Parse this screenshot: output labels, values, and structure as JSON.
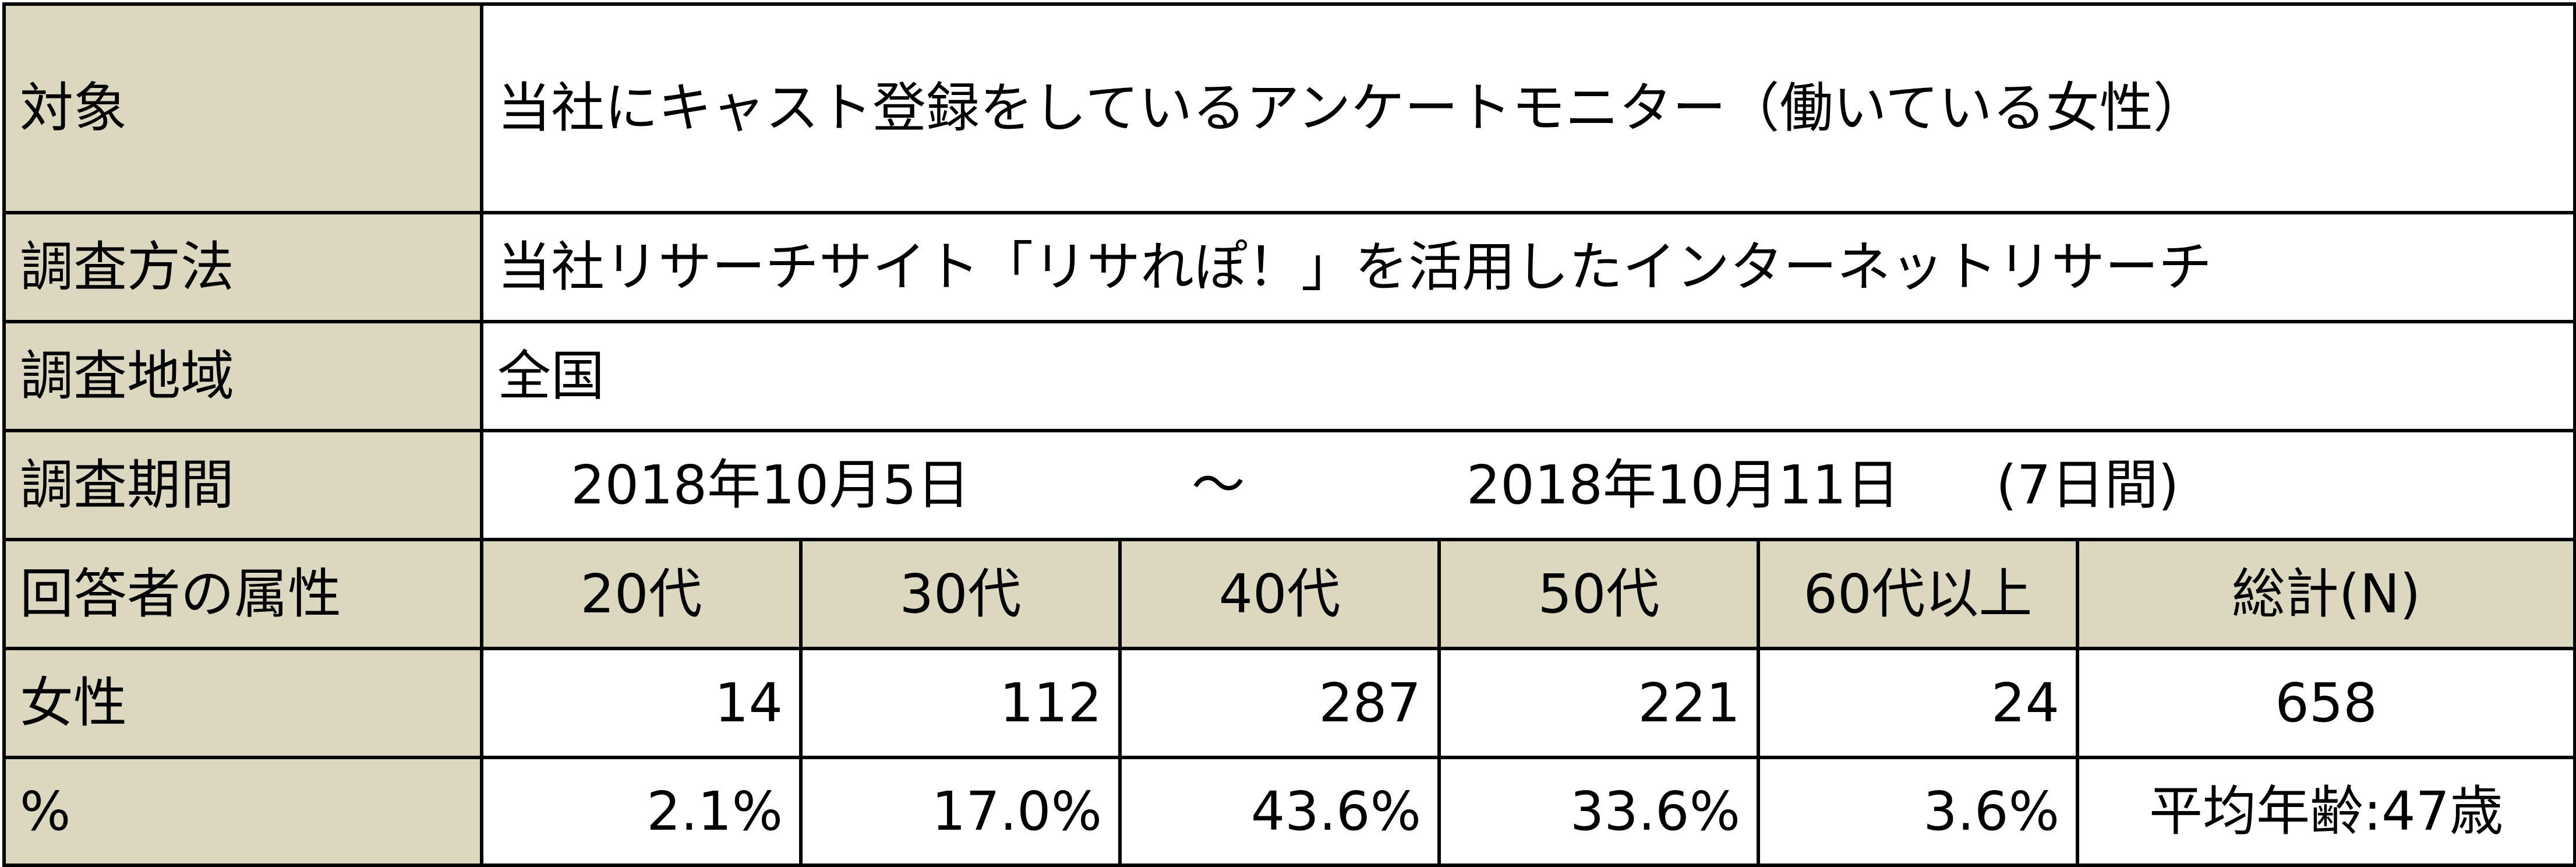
{
  "rows": {
    "target": {
      "label": "対象",
      "value": "当社にキャスト登録をしているアンケートモニター（働いている女性）"
    },
    "method": {
      "label": "調査方法",
      "value": "当社リサーチサイト「リサれぽ！」を活用したインターネットリサーチ"
    },
    "region": {
      "label": "調査地域",
      "value": "全国"
    },
    "period": {
      "label": "調査期間",
      "start": "2018年10月5日",
      "separator": "～",
      "end": "2018年10月11日",
      "days": "(7日間)"
    },
    "attributes": {
      "label": "回答者の属性",
      "columns": [
        "20代",
        "30代",
        "40代",
        "50代",
        "60代以上",
        "総計(N)"
      ]
    },
    "female": {
      "label": "女性",
      "values": [
        "14",
        "112",
        "287",
        "221",
        "24",
        "658"
      ]
    },
    "percent": {
      "label": "%",
      "values": [
        "2.1%",
        "17.0%",
        "43.6%",
        "33.6%",
        "3.6%",
        "平均年齢:47歳"
      ]
    }
  },
  "colors": {
    "header_background": "#dcd8c0",
    "border": "#000000",
    "cell_background": "#ffffff"
  }
}
